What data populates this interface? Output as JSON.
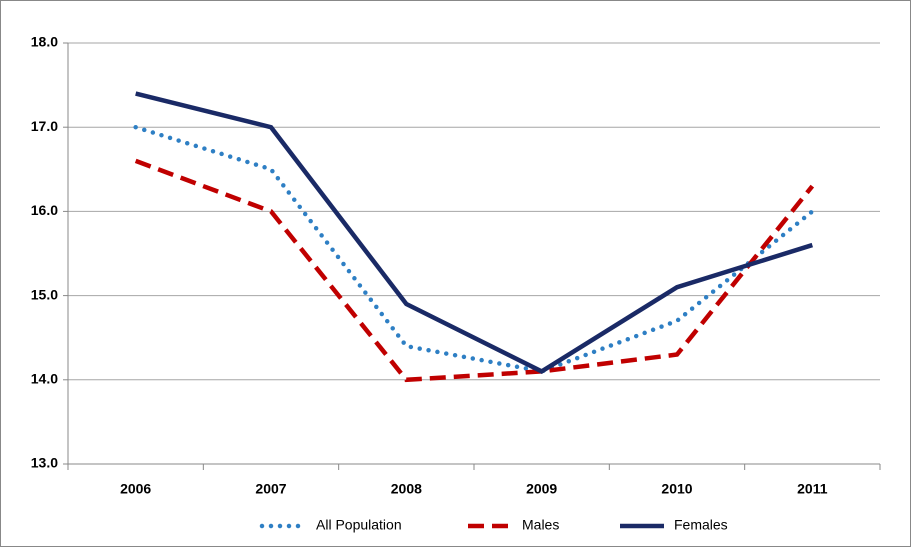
{
  "chart_data": {
    "type": "line",
    "categories": [
      "2006",
      "2007",
      "2008",
      "2009",
      "2010",
      "2011"
    ],
    "series": [
      {
        "name": "All Population",
        "color": "#2e7fc4",
        "style": "dotted",
        "values": [
          17.0,
          16.5,
          14.4,
          14.1,
          14.7,
          16.0
        ]
      },
      {
        "name": "Males",
        "color": "#c00000",
        "style": "dashed",
        "values": [
          16.6,
          16.0,
          14.0,
          14.1,
          14.3,
          16.3
        ]
      },
      {
        "name": "Females",
        "color": "#1a2a66",
        "style": "solid",
        "values": [
          17.4,
          17.0,
          14.9,
          14.1,
          15.1,
          15.6
        ]
      }
    ],
    "ylim": [
      13,
      18
    ],
    "yticks": [
      {
        "value": 13,
        "label": "13.0"
      },
      {
        "value": 14,
        "label": "14.0"
      },
      {
        "value": 15,
        "label": "15.0"
      },
      {
        "value": 16,
        "label": "16.0"
      },
      {
        "value": 17,
        "label": "17.0"
      },
      {
        "value": 18,
        "label": "18.0"
      }
    ],
    "grid": true,
    "legend": "bottom"
  }
}
